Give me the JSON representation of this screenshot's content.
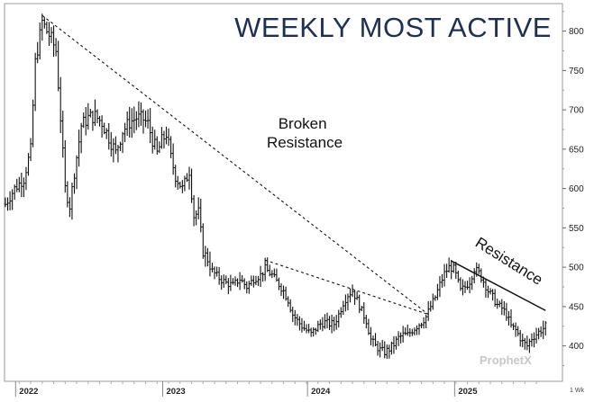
{
  "chart_data": {
    "type": "ohlc",
    "title": "WEEKLY MOST ACTIVE",
    "period_label": "1 Wk",
    "watermark": "ProphetX",
    "grid": false,
    "y_ticks": [
      400,
      450,
      500,
      550,
      600,
      650,
      700,
      750,
      800
    ],
    "ylim": [
      355,
      835
    ],
    "x_ticks": [
      "2022",
      "2023",
      "2024",
      "2025"
    ],
    "annotations": [
      {
        "text": "Broken\nResistance",
        "type": "text"
      },
      {
        "text": "Resistance",
        "type": "text"
      }
    ],
    "trendlines": [
      {
        "name": "broken-resistance-line",
        "style": "dashed",
        "from": {
          "week": 16,
          "price": 820
        },
        "to": {
          "week": 184,
          "price": 440
        }
      },
      {
        "name": "secondary-dashed-line",
        "style": "dashed",
        "from": {
          "week": 113,
          "price": 509
        },
        "to": {
          "week": 184,
          "price": 440
        }
      },
      {
        "name": "resistance-line",
        "style": "solid",
        "from": {
          "week": 194,
          "price": 508
        },
        "to": {
          "week": 235,
          "price": 445
        }
      }
    ],
    "price_path": [
      [
        0,
        580
      ],
      [
        4,
        600
      ],
      [
        8,
        612
      ],
      [
        11,
        650
      ],
      [
        13,
        760
      ],
      [
        16,
        812
      ],
      [
        18,
        800
      ],
      [
        20,
        790
      ],
      [
        22,
        775
      ],
      [
        24,
        690
      ],
      [
        26,
        600
      ],
      [
        28,
        578
      ],
      [
        30,
        620
      ],
      [
        33,
        680
      ],
      [
        36,
        690
      ],
      [
        39,
        692
      ],
      [
        42,
        684
      ],
      [
        45,
        665
      ],
      [
        48,
        646
      ],
      [
        51,
        673
      ],
      [
        54,
        684
      ],
      [
        57,
        690
      ],
      [
        60,
        688
      ],
      [
        62,
        682
      ],
      [
        64,
        662
      ],
      [
        66,
        645
      ],
      [
        68,
        660
      ],
      [
        70,
        670
      ],
      [
        72,
        640
      ],
      [
        74,
        615
      ],
      [
        77,
        600
      ],
      [
        80,
        622
      ],
      [
        82,
        565
      ],
      [
        84,
        570
      ],
      [
        86,
        520
      ],
      [
        88,
        510
      ],
      [
        90,
        495
      ],
      [
        93,
        486
      ],
      [
        96,
        480
      ],
      [
        99,
        477
      ],
      [
        102,
        485
      ],
      [
        105,
        475
      ],
      [
        108,
        485
      ],
      [
        111,
        490
      ],
      [
        113,
        498
      ],
      [
        116,
        490
      ],
      [
        119,
        478
      ],
      [
        121,
        470
      ],
      [
        123,
        458
      ],
      [
        125,
        440
      ],
      [
        127,
        432
      ],
      [
        129,
        425
      ],
      [
        131,
        420
      ],
      [
        133,
        415
      ],
      [
        135,
        422
      ],
      [
        137,
        428
      ],
      [
        139,
        430
      ],
      [
        141,
        428
      ],
      [
        143,
        428
      ],
      [
        145,
        440
      ],
      [
        147,
        455
      ],
      [
        149,
        465
      ],
      [
        151,
        470
      ],
      [
        153,
        458
      ],
      [
        155,
        444
      ],
      [
        157,
        432
      ],
      [
        159,
        408
      ],
      [
        161,
        400
      ],
      [
        163,
        395
      ],
      [
        165,
        392
      ],
      [
        167,
        396
      ],
      [
        169,
        402
      ],
      [
        171,
        410
      ],
      [
        173,
        414
      ],
      [
        175,
        414
      ],
      [
        177,
        420
      ],
      [
        179,
        425
      ],
      [
        181,
        430
      ],
      [
        183,
        437
      ],
      [
        185,
        450
      ],
      [
        187,
        462
      ],
      [
        189,
        478
      ],
      [
        191,
        492
      ],
      [
        193,
        500
      ],
      [
        195,
        498
      ],
      [
        196,
        490
      ],
      [
        198,
        470
      ],
      [
        200,
        475
      ],
      [
        202,
        482
      ],
      [
        204,
        498
      ],
      [
        206,
        493
      ],
      [
        208,
        482
      ],
      [
        210,
        470
      ],
      [
        212,
        462
      ],
      [
        214,
        452
      ],
      [
        216,
        448
      ],
      [
        218,
        440
      ],
      [
        220,
        425
      ],
      [
        222,
        420
      ],
      [
        224,
        410
      ],
      [
        225,
        405
      ],
      [
        227,
        400
      ],
      [
        229,
        410
      ],
      [
        231,
        415
      ],
      [
        233,
        420
      ],
      [
        235,
        425
      ]
    ]
  }
}
